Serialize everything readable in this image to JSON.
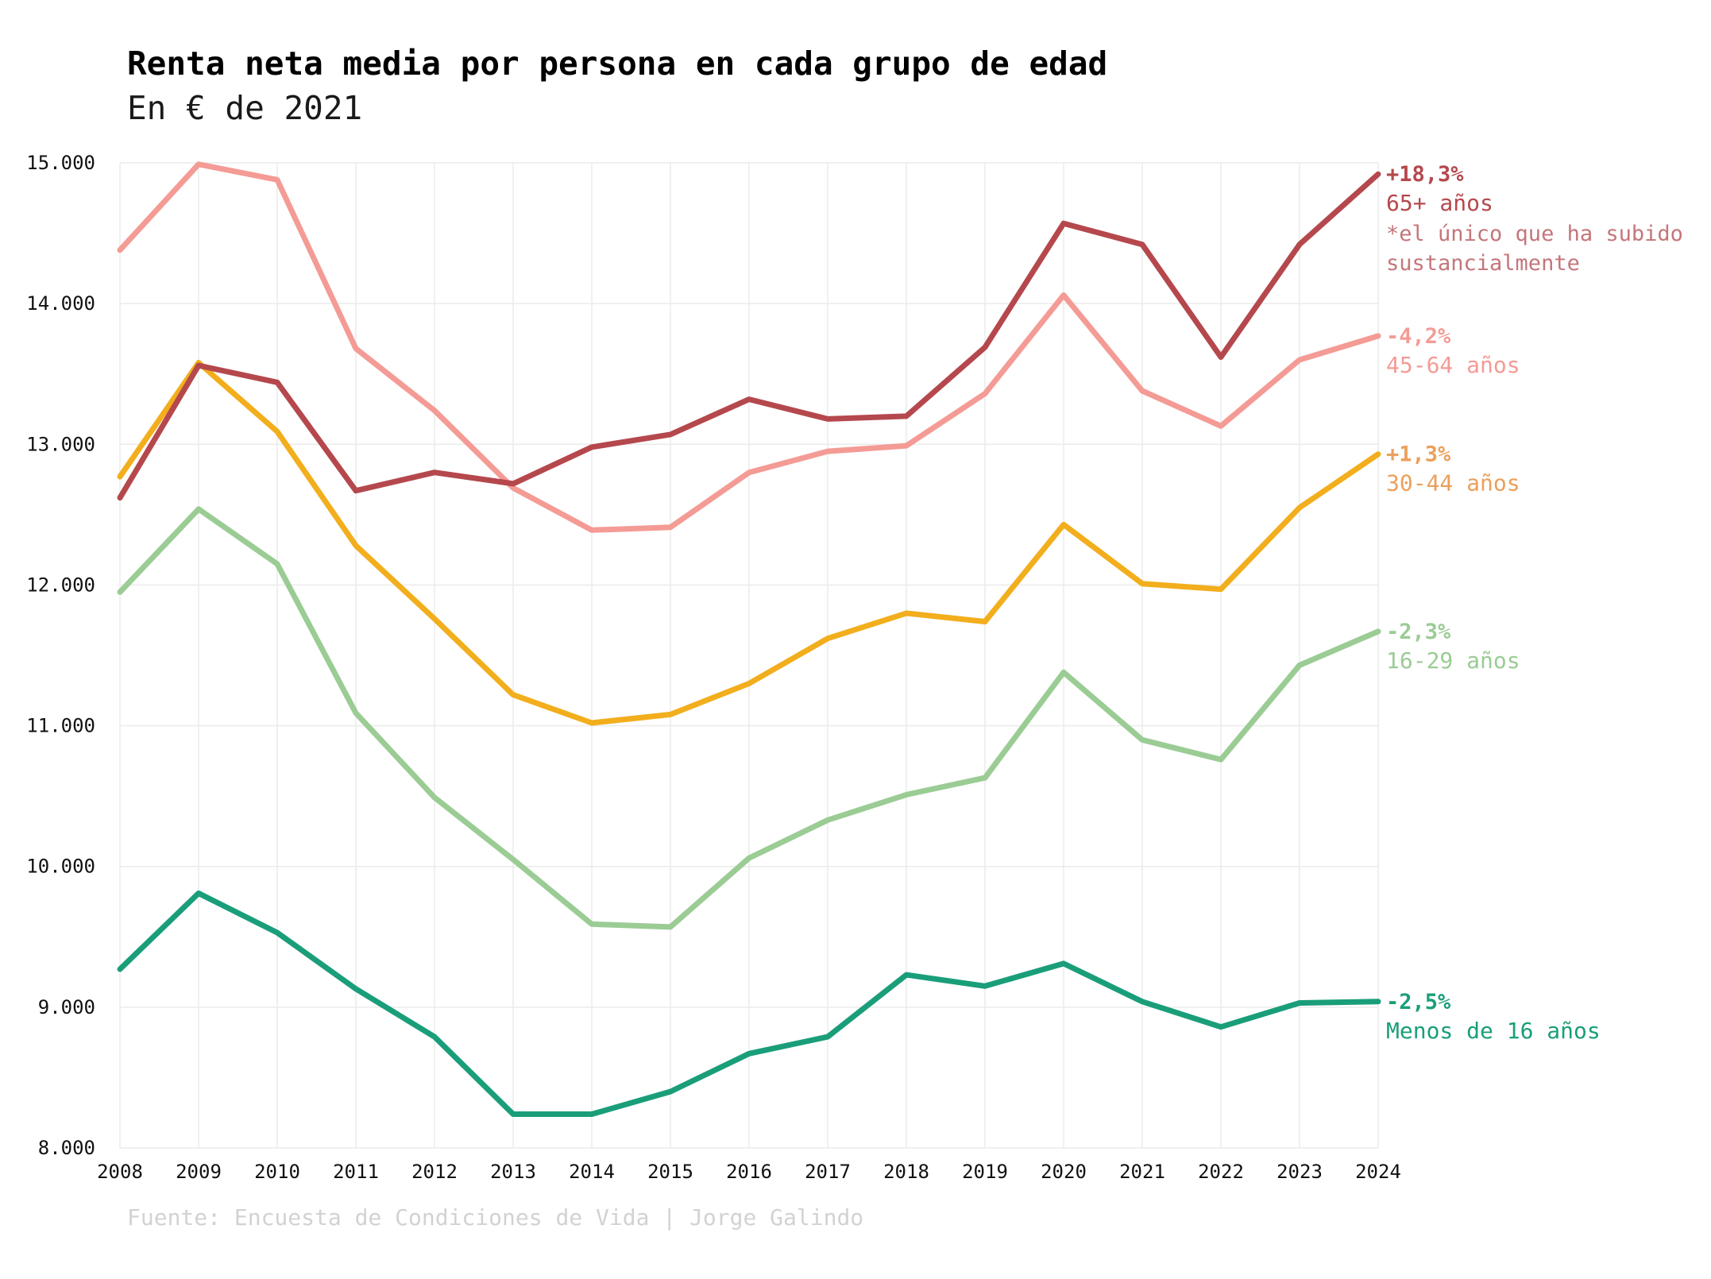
{
  "chart_data": {
    "type": "line",
    "title": "Renta neta media por persona en cada grupo de edad",
    "subtitle": "En € de 2021",
    "source": "Fuente: Encuesta de Condiciones de Vida | Jorge Galindo",
    "x": [
      2008,
      2009,
      2010,
      2011,
      2012,
      2013,
      2014,
      2015,
      2016,
      2017,
      2018,
      2019,
      2020,
      2021,
      2022,
      2023,
      2024
    ],
    "ylim": [
      8000,
      15000
    ],
    "yticks": [
      8000,
      9000,
      10000,
      11000,
      12000,
      13000,
      14000,
      15000
    ],
    "ytick_labels": [
      "8.000",
      "9.000",
      "10.000",
      "11.000",
      "12.000",
      "13.000",
      "14.000",
      "15.000"
    ],
    "xtick_labels": [
      "2008",
      "2009",
      "2010",
      "2011",
      "2012",
      "2013",
      "2014",
      "2015",
      "2016",
      "2017",
      "2018",
      "2019",
      "2020",
      "2021",
      "2022",
      "2023",
      "2024"
    ],
    "grid": true,
    "legend": "direct labels at line ends (right)",
    "series": [
      {
        "name": "65+ años",
        "change": "+18,3%",
        "note": [
          "*el único que ha subido",
          "sustancialmente"
        ],
        "color": "#b5484d",
        "note_color": "#c4767a",
        "values": [
          12620,
          13560,
          13440,
          12670,
          12800,
          12720,
          12980,
          13070,
          13320,
          13180,
          13200,
          13690,
          14570,
          14420,
          13620,
          14420,
          14920
        ]
      },
      {
        "name": "45-64 años",
        "change": "-4,2%",
        "color": "#f49b95",
        "values": [
          14380,
          14990,
          14880,
          13680,
          13240,
          12690,
          12390,
          12410,
          12800,
          12950,
          12990,
          13360,
          14060,
          13380,
          13130,
          13600,
          13770
        ]
      },
      {
        "name": "30-44 años",
        "change": "+1,3%",
        "color": "#f2ae1c",
        "label_color": "#eba05b",
        "values": [
          12770,
          13580,
          13090,
          12280,
          11760,
          11220,
          11020,
          11080,
          11300,
          11620,
          11800,
          11740,
          12430,
          12010,
          11970,
          12550,
          12930
        ]
      },
      {
        "name": "16-29 años",
        "change": "-2,3%",
        "color": "#9acc94",
        "values": [
          11950,
          12540,
          12150,
          11090,
          10490,
          10050,
          9590,
          9570,
          10060,
          10330,
          10510,
          10630,
          11380,
          10900,
          10760,
          11430,
          11670
        ]
      },
      {
        "name": "Menos de 16 años",
        "change": "-2,5%",
        "color": "#1a9e7a",
        "values": [
          9270,
          9810,
          9530,
          9130,
          8790,
          8240,
          8240,
          8400,
          8670,
          8790,
          9230,
          9150,
          9310,
          9040,
          8860,
          9030,
          9040
        ]
      }
    ]
  }
}
